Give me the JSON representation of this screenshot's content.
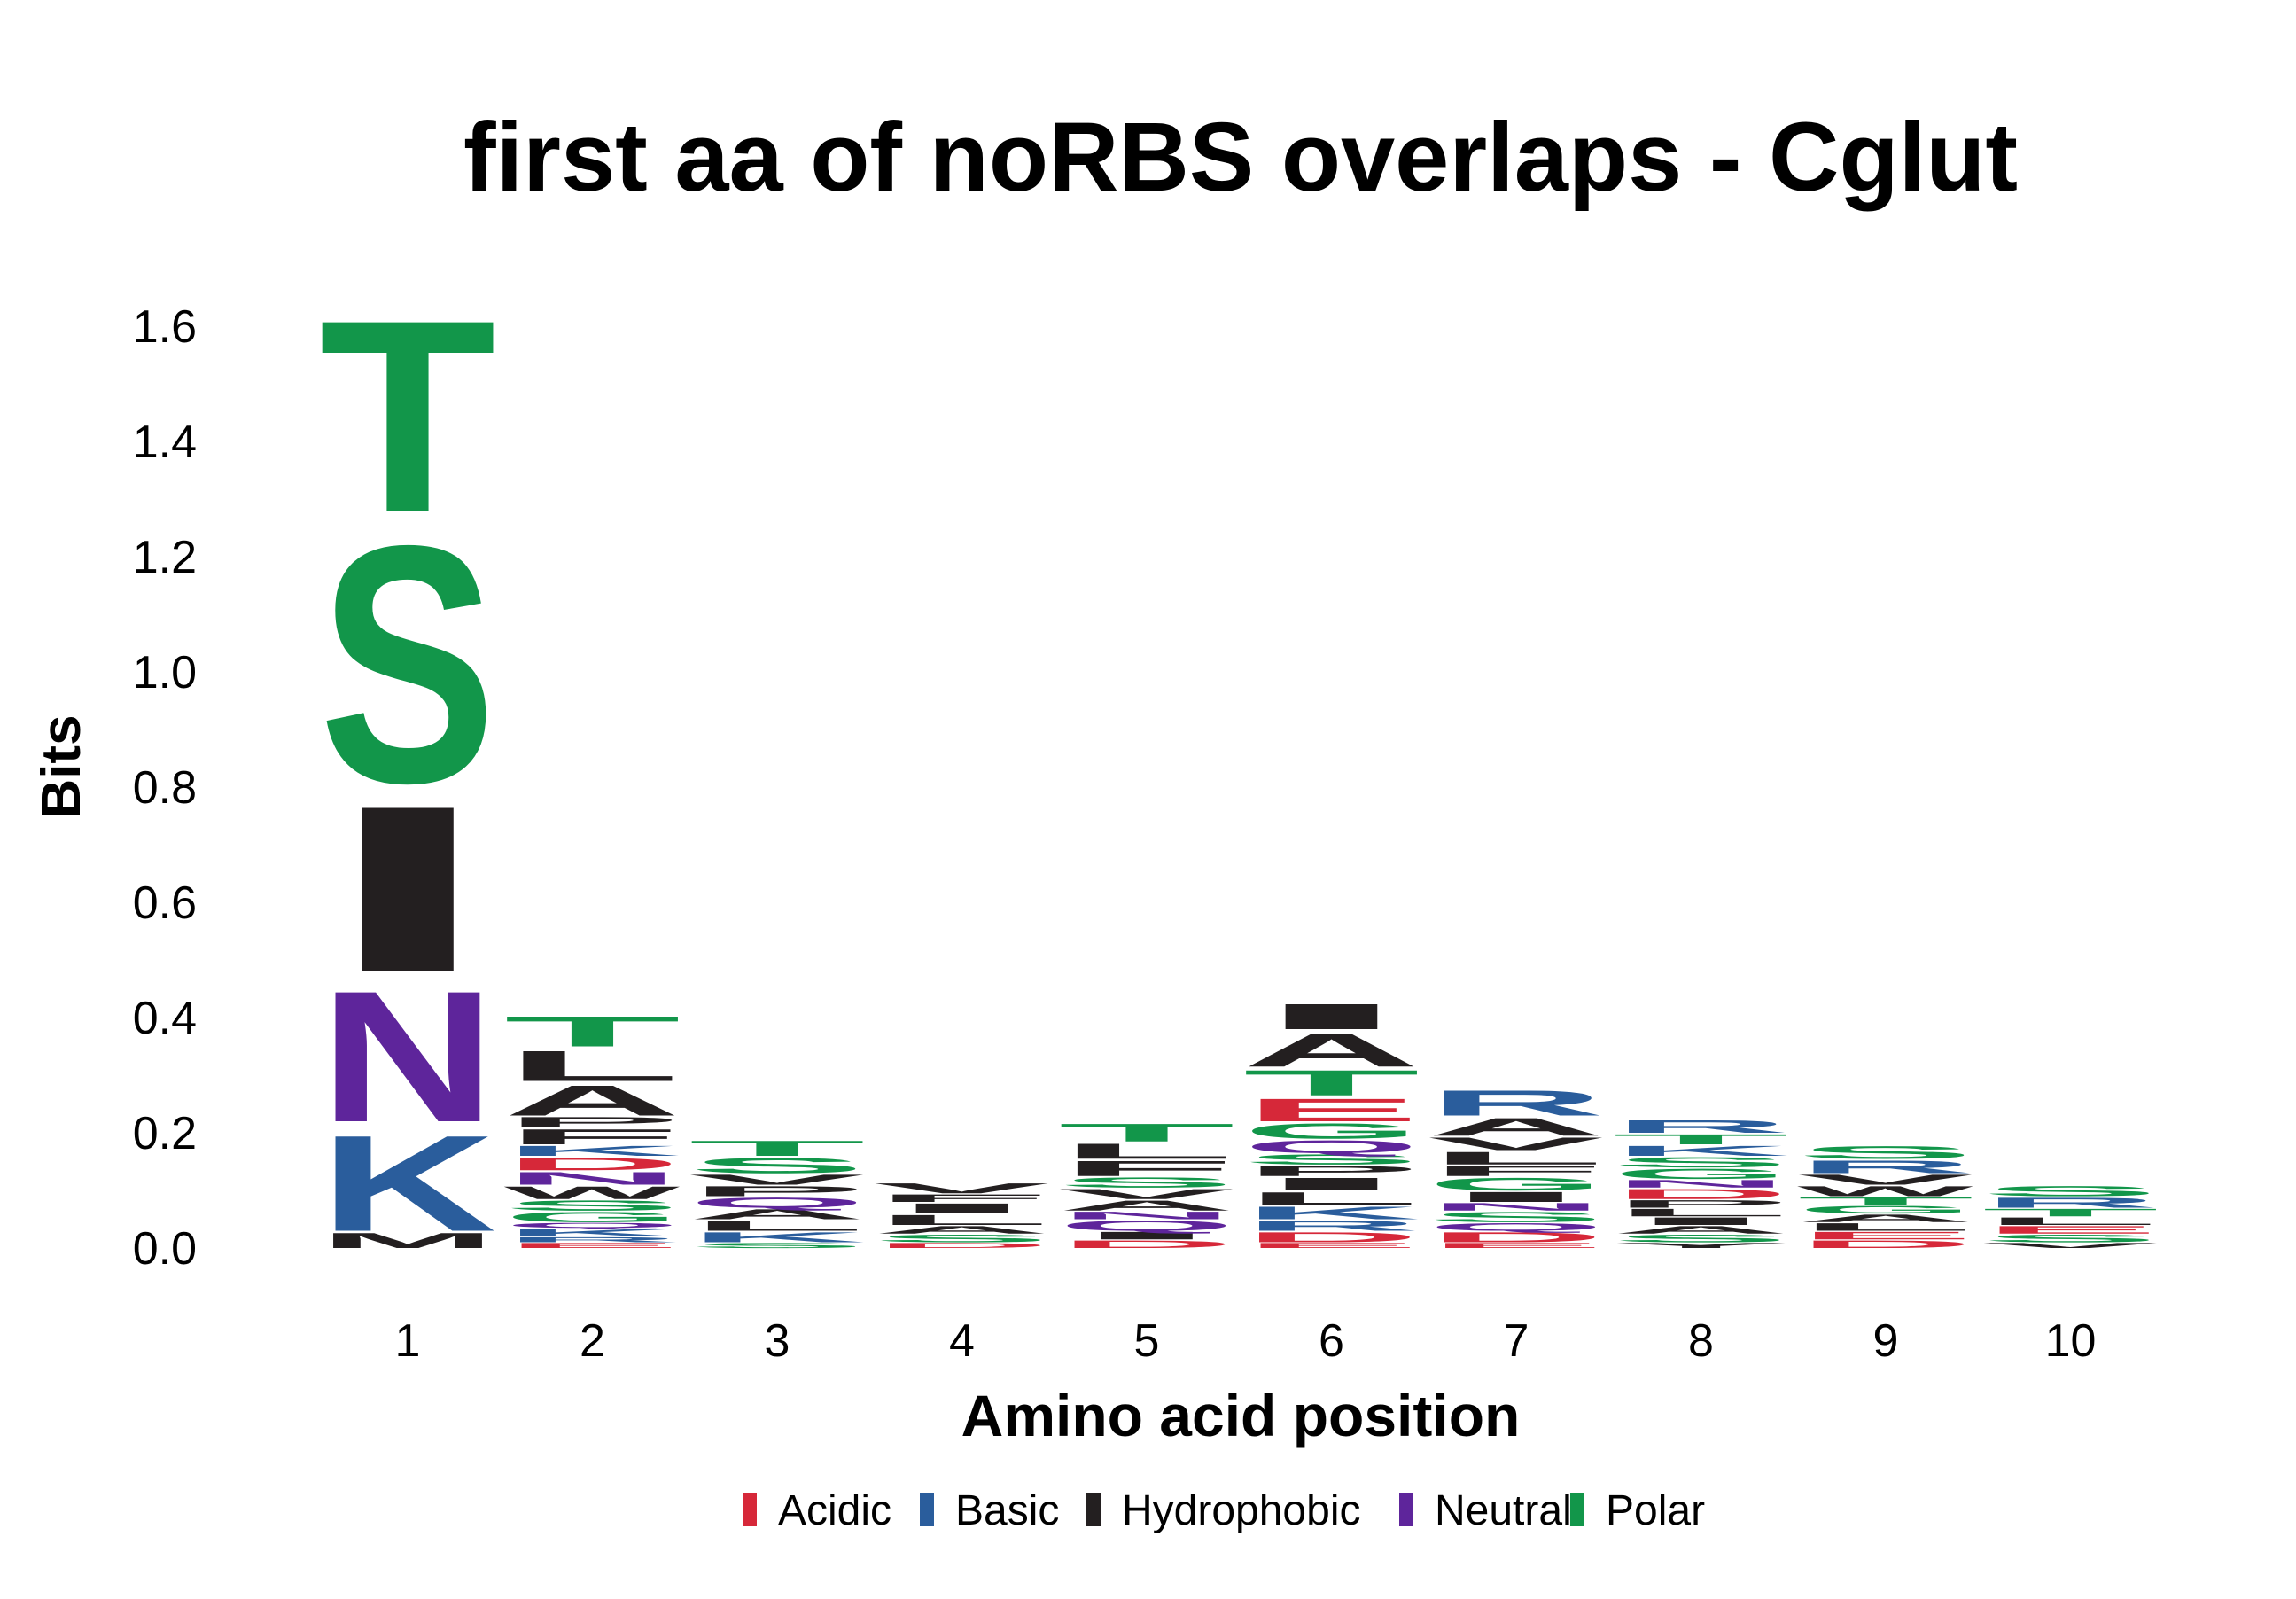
{
  "chart_data": {
    "type": "sequence-logo",
    "title": "first aa of noRBS overlaps - Cglut",
    "xlabel": "Amino acid position",
    "ylabel": "Bits",
    "ylim": [
      0,
      1.65
    ],
    "y_ticks": [
      "0.0",
      "0.2",
      "0.4",
      "0.6",
      "0.8",
      "1.0",
      "1.2",
      "1.4",
      "1.6"
    ],
    "y_tick_values": [
      0,
      0.2,
      0.4,
      0.6,
      0.8,
      1.0,
      1.2,
      1.4,
      1.6
    ],
    "positions": [
      "1",
      "2",
      "3",
      "4",
      "5",
      "6",
      "7",
      "8",
      "9",
      "10"
    ],
    "grid": false,
    "legend_position": "bottom",
    "groups": [
      {
        "name": "Acidic",
        "color": "#d62839"
      },
      {
        "name": "Basic",
        "color": "#2a5d9c"
      },
      {
        "name": "Hydrophobic",
        "color": "#231f20"
      },
      {
        "name": "Neutral",
        "color": "#5e259b"
      },
      {
        "name": "Polar",
        "color": "#12964a"
      }
    ],
    "stacks": [
      {
        "position": "1",
        "letters": [
          {
            "aa": "M",
            "group": "Hydrophobic",
            "bits": 0.03
          },
          {
            "aa": "K",
            "group": "Basic",
            "bits": 0.19
          },
          {
            "aa": "N",
            "group": "Neutral",
            "bits": 0.26
          },
          {
            "aa": "I",
            "group": "Hydrophobic",
            "bits": 0.33
          },
          {
            "aa": "S",
            "group": "Polar",
            "bits": 0.47
          },
          {
            "aa": "T",
            "group": "Polar",
            "bits": 0.38
          }
        ]
      },
      {
        "position": "2",
        "letters": [
          {
            "aa": "E",
            "group": "Acidic",
            "bits": 0.01
          },
          {
            "aa": "R",
            "group": "Basic",
            "bits": 0.01
          },
          {
            "aa": "K",
            "group": "Basic",
            "bits": 0.015
          },
          {
            "aa": "Q",
            "group": "Neutral",
            "bits": 0.01
          },
          {
            "aa": "G",
            "group": "Polar",
            "bits": 0.02
          },
          {
            "aa": "S",
            "group": "Polar",
            "bits": 0.02
          },
          {
            "aa": "W",
            "group": "Hydrophobic",
            "bits": 0.025
          },
          {
            "aa": "N",
            "group": "Neutral",
            "bits": 0.025
          },
          {
            "aa": "D",
            "group": "Acidic",
            "bits": 0.025
          },
          {
            "aa": "K",
            "group": "Basic",
            "bits": 0.02
          },
          {
            "aa": "F",
            "group": "Hydrophobic",
            "bits": 0.03
          },
          {
            "aa": "P",
            "group": "Hydrophobic",
            "bits": 0.02
          },
          {
            "aa": "A",
            "group": "Hydrophobic",
            "bits": 0.06
          },
          {
            "aa": "L",
            "group": "Hydrophobic",
            "bits": 0.06
          },
          {
            "aa": "T",
            "group": "Polar",
            "bits": 0.06
          }
        ]
      },
      {
        "position": "3",
        "letters": [
          {
            "aa": "S",
            "group": "Polar",
            "bits": 0.01
          },
          {
            "aa": "K",
            "group": "Basic",
            "bits": 0.02
          },
          {
            "aa": "L",
            "group": "Hydrophobic",
            "bits": 0.02
          },
          {
            "aa": "A",
            "group": "Hydrophobic",
            "bits": 0.02
          },
          {
            "aa": "Q",
            "group": "Neutral",
            "bits": 0.02
          },
          {
            "aa": "P",
            "group": "Hydrophobic",
            "bits": 0.02
          },
          {
            "aa": "V",
            "group": "Hydrophobic",
            "bits": 0.02
          },
          {
            "aa": "S",
            "group": "Polar",
            "bits": 0.03
          },
          {
            "aa": "T",
            "group": "Polar",
            "bits": 0.03
          }
        ]
      },
      {
        "position": "4",
        "letters": [
          {
            "aa": "D",
            "group": "Acidic",
            "bits": 0.01
          },
          {
            "aa": "S",
            "group": "Polar",
            "bits": 0.015
          },
          {
            "aa": "A",
            "group": "Hydrophobic",
            "bits": 0.015
          },
          {
            "aa": "L",
            "group": "Hydrophobic",
            "bits": 0.02
          },
          {
            "aa": "I",
            "group": "Hydrophobic",
            "bits": 0.02
          },
          {
            "aa": "F",
            "group": "Hydrophobic",
            "bits": 0.015
          },
          {
            "aa": "V",
            "group": "Hydrophobic",
            "bits": 0.02
          }
        ]
      },
      {
        "position": "5",
        "letters": [
          {
            "aa": "D",
            "group": "Acidic",
            "bits": 0.015
          },
          {
            "aa": "I",
            "group": "Hydrophobic",
            "bits": 0.015
          },
          {
            "aa": "Q",
            "group": "Neutral",
            "bits": 0.02
          },
          {
            "aa": "N",
            "group": "Neutral",
            "bits": 0.015
          },
          {
            "aa": "A",
            "group": "Hydrophobic",
            "bits": 0.02
          },
          {
            "aa": "V",
            "group": "Hydrophobic",
            "bits": 0.02
          },
          {
            "aa": "S",
            "group": "Polar",
            "bits": 0.02
          },
          {
            "aa": "F",
            "group": "Hydrophobic",
            "bits": 0.03
          },
          {
            "aa": "L",
            "group": "Hydrophobic",
            "bits": 0.03
          },
          {
            "aa": "T",
            "group": "Polar",
            "bits": 0.035
          }
        ]
      },
      {
        "position": "6",
        "letters": [
          {
            "aa": "E",
            "group": "Acidic",
            "bits": 0.01
          },
          {
            "aa": "D",
            "group": "Acidic",
            "bits": 0.02
          },
          {
            "aa": "R",
            "group": "Basic",
            "bits": 0.02
          },
          {
            "aa": "K",
            "group": "Basic",
            "bits": 0.025
          },
          {
            "aa": "L",
            "group": "Hydrophobic",
            "bits": 0.025
          },
          {
            "aa": "I",
            "group": "Hydrophobic",
            "bits": 0.025
          },
          {
            "aa": "P",
            "group": "Hydrophobic",
            "bits": 0.02
          },
          {
            "aa": "S",
            "group": "Polar",
            "bits": 0.02
          },
          {
            "aa": "Q",
            "group": "Neutral",
            "bits": 0.025
          },
          {
            "aa": "G",
            "group": "Polar",
            "bits": 0.03
          },
          {
            "aa": "E",
            "group": "Acidic",
            "bits": 0.045
          },
          {
            "aa": "T",
            "group": "Polar",
            "bits": 0.05
          },
          {
            "aa": "A",
            "group": "Hydrophobic",
            "bits": 0.065
          },
          {
            "aa": "I",
            "group": "Hydrophobic",
            "bits": 0.05
          }
        ]
      },
      {
        "position": "7",
        "letters": [
          {
            "aa": "E",
            "group": "Acidic",
            "bits": 0.01
          },
          {
            "aa": "D",
            "group": "Acidic",
            "bits": 0.02
          },
          {
            "aa": "Q",
            "group": "Neutral",
            "bits": 0.015
          },
          {
            "aa": "S",
            "group": "Polar",
            "bits": 0.02
          },
          {
            "aa": "N",
            "group": "Neutral",
            "bits": 0.015
          },
          {
            "aa": "I",
            "group": "Hydrophobic",
            "bits": 0.02
          },
          {
            "aa": "G",
            "group": "Polar",
            "bits": 0.025
          },
          {
            "aa": "F",
            "group": "Hydrophobic",
            "bits": 0.02
          },
          {
            "aa": "L",
            "group": "Hydrophobic",
            "bits": 0.025
          },
          {
            "aa": "V",
            "group": "Hydrophobic",
            "bits": 0.025
          },
          {
            "aa": "A",
            "group": "Hydrophobic",
            "bits": 0.035
          },
          {
            "aa": "R",
            "group": "Basic",
            "bits": 0.05
          }
        ]
      },
      {
        "position": "8",
        "letters": [
          {
            "aa": "Y",
            "group": "Hydrophobic",
            "bits": 0.01
          },
          {
            "aa": "S",
            "group": "Polar",
            "bits": 0.015
          },
          {
            "aa": "A",
            "group": "Hydrophobic",
            "bits": 0.015
          },
          {
            "aa": "I",
            "group": "Hydrophobic",
            "bits": 0.015
          },
          {
            "aa": "L",
            "group": "Hydrophobic",
            "bits": 0.015
          },
          {
            "aa": "P",
            "group": "Hydrophobic",
            "bits": 0.015
          },
          {
            "aa": "D",
            "group": "Acidic",
            "bits": 0.02
          },
          {
            "aa": "N",
            "group": "Neutral",
            "bits": 0.015
          },
          {
            "aa": "G",
            "group": "Polar",
            "bits": 0.02
          },
          {
            "aa": "S",
            "group": "Polar",
            "bits": 0.02
          },
          {
            "aa": "K",
            "group": "Basic",
            "bits": 0.02
          },
          {
            "aa": "T",
            "group": "Polar",
            "bits": 0.02
          },
          {
            "aa": "R",
            "group": "Basic",
            "bits": 0.025
          }
        ]
      },
      {
        "position": "9",
        "letters": [
          {
            "aa": "D",
            "group": "Acidic",
            "bits": 0.015
          },
          {
            "aa": "E",
            "group": "Acidic",
            "bits": 0.015
          },
          {
            "aa": "L",
            "group": "Hydrophobic",
            "bits": 0.015
          },
          {
            "aa": "A",
            "group": "Hydrophobic",
            "bits": 0.015
          },
          {
            "aa": "G",
            "group": "Polar",
            "bits": 0.015
          },
          {
            "aa": "T",
            "group": "Polar",
            "bits": 0.015
          },
          {
            "aa": "W",
            "group": "Hydrophobic",
            "bits": 0.02
          },
          {
            "aa": "V",
            "group": "Hydrophobic",
            "bits": 0.02
          },
          {
            "aa": "R",
            "group": "Basic",
            "bits": 0.025
          },
          {
            "aa": "S",
            "group": "Polar",
            "bits": 0.025
          }
        ]
      },
      {
        "position": "10",
        "letters": [
          {
            "aa": "V",
            "group": "Hydrophobic",
            "bits": 0.01
          },
          {
            "aa": "S",
            "group": "Polar",
            "bits": 0.015
          },
          {
            "aa": "E",
            "group": "Acidic",
            "bits": 0.015
          },
          {
            "aa": "L",
            "group": "Hydrophobic",
            "bits": 0.015
          },
          {
            "aa": "T",
            "group": "Polar",
            "bits": 0.015
          },
          {
            "aa": "R",
            "group": "Basic",
            "bits": 0.02
          },
          {
            "aa": "S",
            "group": "Polar",
            "bits": 0.02
          }
        ]
      }
    ]
  }
}
